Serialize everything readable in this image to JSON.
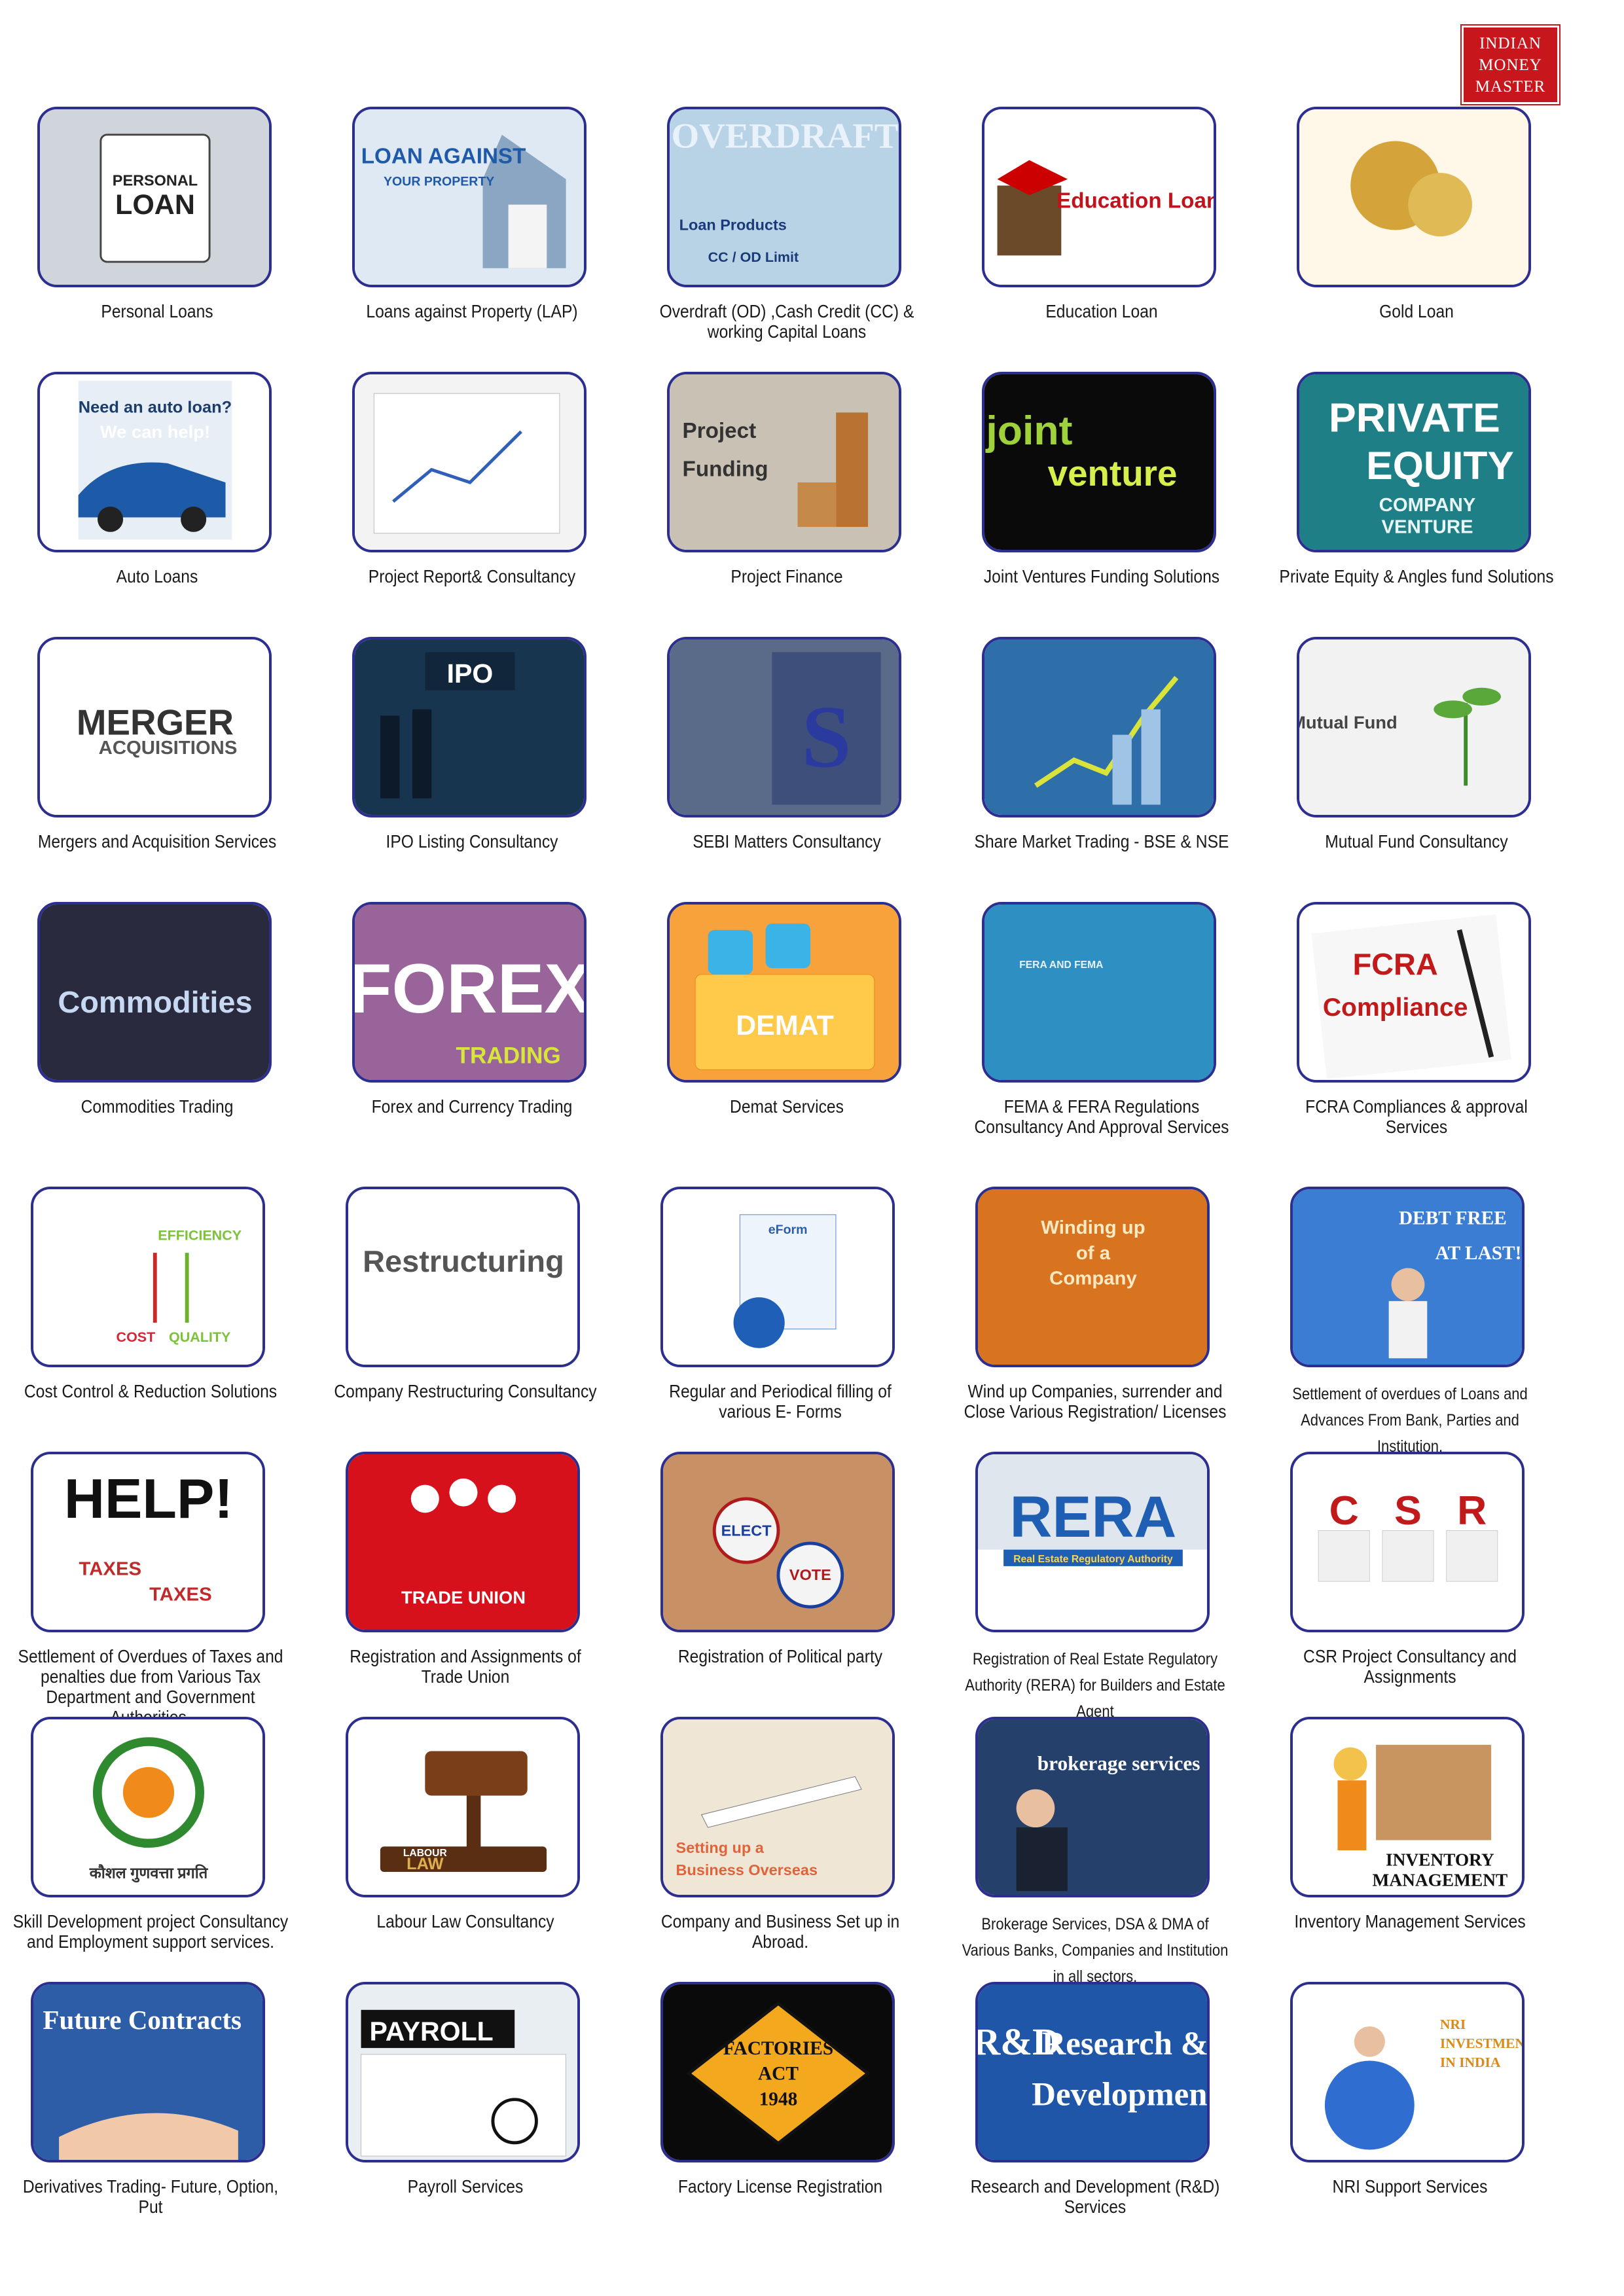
{
  "brand": {
    "line1": "INDIAN",
    "line2": "MONEY",
    "line3": "MASTER"
  },
  "services": [
    {
      "caption": "Personal Loans",
      "icon": "personal-loan-tablet",
      "art": [
        "PERSONAL",
        "LOAN"
      ]
    },
    {
      "caption": "Loans against Property (LAP)",
      "icon": "house-model",
      "art": [
        "LOAN AGAINST",
        "YOUR PROPERTY"
      ]
    },
    {
      "caption": "Overdraft (OD) ,Cash Credit (CC) & working Capital Loans",
      "icon": "overdraft-text",
      "art": [
        "OVERDRAFT",
        "Loan Products",
        "CC / OD Limit"
      ]
    },
    {
      "caption": "Education Loan",
      "icon": "graduation-cap-books",
      "art": [
        "Education Loan"
      ]
    },
    {
      "caption": "Gold Loan",
      "icon": "gold-jewellery",
      "art": []
    },
    {
      "caption": "Auto Loans",
      "icon": "blue-car",
      "art": [
        "Need an auto loan?",
        "We can help!"
      ]
    },
    {
      "caption": "Project Report& Consultancy",
      "icon": "hands-charts",
      "art": []
    },
    {
      "caption": "Project Finance",
      "icon": "coin-stacks",
      "art": [
        "Project",
        "Funding"
      ]
    },
    {
      "caption": "Joint Ventures Funding Solutions",
      "icon": "joint-venture-wordcloud",
      "art": [
        "joint",
        "venture"
      ]
    },
    {
      "caption": "Private Equity & Angles fund Solutions",
      "icon": "private-equity-wordcloud",
      "art": [
        "PRIVATE",
        "EQUITY",
        "COMPANY",
        "VENTURE"
      ]
    },
    {
      "caption": "Mergers and Acquisition Services",
      "icon": "merger-wordcloud",
      "art": [
        "MERGER",
        "ACQUISITIONS"
      ]
    },
    {
      "caption": "IPO Listing Consultancy",
      "icon": "ipo-touch",
      "art": [
        "IPO"
      ]
    },
    {
      "caption": "SEBI Matters Consultancy",
      "icon": "sebi-building",
      "art": []
    },
    {
      "caption": "Share Market Trading - BSE & NSE",
      "icon": "rising-chart",
      "art": []
    },
    {
      "caption": "Mutual Fund Consultancy",
      "icon": "plant-coins",
      "art": [
        "Mutual Fund"
      ]
    },
    {
      "caption": "Commodities Trading",
      "icon": "commodities-wordcloud",
      "art": [
        "Commodities"
      ]
    },
    {
      "caption": "Forex and Currency Trading",
      "icon": "forex-banknotes",
      "art": [
        "FOREX",
        "TRADING"
      ]
    },
    {
      "caption": "Demat Services",
      "icon": "demat-folder",
      "art": [
        "DEMAT"
      ]
    },
    {
      "caption": "FEMA & FERA Regulations Consultancy And Approval Services",
      "icon": "fera-fema-slide",
      "art": [
        "FERA AND FEMA"
      ]
    },
    {
      "caption": "FCRA Compliances & approval Services",
      "icon": "fcra-paper-pen",
      "art": [
        "FCRA",
        "Compliance"
      ]
    },
    {
      "caption": "Cost Control & Reduction Solutions",
      "icon": "cost-quality-arrows",
      "art": [
        "EFFICIENCY",
        "COST",
        "QUALITY"
      ]
    },
    {
      "caption": "Company Restructuring Consultancy",
      "icon": "restructuring-wordcloud",
      "art": [
        "Restructuring"
      ]
    },
    {
      "caption": "Regular and Periodical filling of various E- Forms",
      "icon": "eform-globe",
      "art": [
        "eForm"
      ]
    },
    {
      "caption": "Wind up Companies, surrender and Close Various Registration/ Licenses",
      "icon": "winding-up-slide",
      "art": [
        "Winding up",
        "of a",
        "Company"
      ]
    },
    {
      "caption": "Settlement of overdues of Loans and Advances From Bank, Parties and Institution.",
      "icon": "debt-free-man",
      "art": [
        "DEBT FREE",
        "AT LAST!!!"
      ]
    },
    {
      "caption": "Settlement of Overdues of Taxes and penalties due from Various Tax Department and Government Authorities.",
      "icon": "help-taxes",
      "art": [
        "HELP!",
        "TAXES"
      ]
    },
    {
      "caption": "Registration and Assignments  of Trade Union",
      "icon": "trade-union-logo",
      "art": [
        "TRADE UNION"
      ]
    },
    {
      "caption": "Registration of Political party",
      "icon": "election-buttons",
      "art": [
        "ELECT",
        "VOTE"
      ]
    },
    {
      "caption": "Registration of Real Estate Regulatory Authority (RERA) for Builders and Estate Agent",
      "icon": "rera-logo",
      "art": [
        "RERA",
        "Real Estate Regulatory Authority"
      ]
    },
    {
      "caption": "CSR Project Consultancy and Assignments",
      "icon": "csr-cubes",
      "art": [
        "C",
        "S",
        "R"
      ]
    },
    {
      "caption": "Skill Development project Consultancy and Employment support services.",
      "icon": "nsdc-logo",
      "art": [
        "कौशल  गुणवत्ता  प्रगति"
      ]
    },
    {
      "caption": "Labour Law Consultancy",
      "icon": "gavel",
      "art": [
        "LABOUR",
        "LAW"
      ]
    },
    {
      "caption": "Company and Business Set up in Abroad.",
      "icon": "airplane-map",
      "art": [
        "Setting up a",
        "Business Overseas"
      ]
    },
    {
      "caption": "Brokerage Services, DSA & DMA of Various Banks, Companies and Institution in all sectors.",
      "icon": "brokerage-touch",
      "art": [
        "brokerage services"
      ]
    },
    {
      "caption": "Inventory Management Services",
      "icon": "inventory-boxes",
      "art": [
        "INVENTORY",
        "MANAGEMENT"
      ]
    },
    {
      "caption": "Derivatives Trading- Future, Option, Put",
      "icon": "future-contracts-hand",
      "art": [
        "Future Contracts"
      ]
    },
    {
      "caption": "Payroll Services",
      "icon": "payroll-binder",
      "art": [
        "PAYROLL"
      ]
    },
    {
      "caption": "Factory License Registration",
      "icon": "factories-act-sign",
      "art": [
        "FACTORIES",
        "ACT",
        "1948"
      ]
    },
    {
      "caption": "Research and Development (R&D) Services",
      "icon": "research-development",
      "art": [
        "R&D",
        "Research &",
        "Development"
      ]
    },
    {
      "caption": "NRI Support Services",
      "icon": "nri-globe-man",
      "art": [
        "NRI",
        "INVESTMENT",
        "IN INDIA"
      ]
    }
  ]
}
